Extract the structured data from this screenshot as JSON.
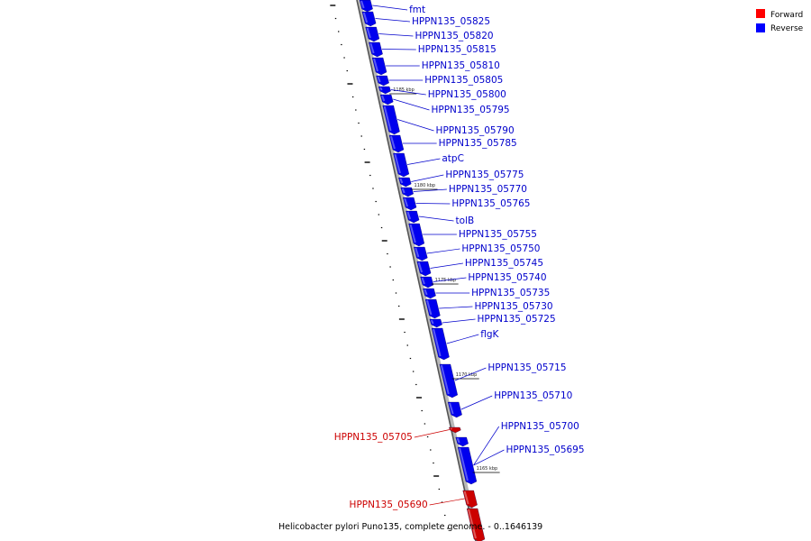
{
  "caption": "Helicobacter pylori Puno135, complete genome. - 0..1646139",
  "legend": [
    {
      "label": "Forward",
      "color": "#ff0000"
    },
    {
      "label": "Reverse",
      "color": "#0000ff"
    }
  ],
  "colors": {
    "forward": "#cc0000",
    "reverse": "#0000ee"
  },
  "ticks": [
    "1185 kbp",
    "1180 kbp",
    "1175 kbp",
    "1170 kbp",
    "1165 kbp"
  ],
  "genes": [
    {
      "name": "fmt",
      "strand": "reverse"
    },
    {
      "name": "HPPN135_05825",
      "strand": "reverse"
    },
    {
      "name": "HPPN135_05820",
      "strand": "reverse"
    },
    {
      "name": "HPPN135_05815",
      "strand": "reverse"
    },
    {
      "name": "HPPN135_05810",
      "strand": "reverse"
    },
    {
      "name": "HPPN135_05805",
      "strand": "reverse"
    },
    {
      "name": "HPPN135_05800",
      "strand": "reverse"
    },
    {
      "name": "HPPN135_05795",
      "strand": "reverse"
    },
    {
      "name": "HPPN135_05790",
      "strand": "reverse"
    },
    {
      "name": "HPPN135_05785",
      "strand": "reverse"
    },
    {
      "name": "atpC",
      "strand": "reverse"
    },
    {
      "name": "HPPN135_05775",
      "strand": "reverse"
    },
    {
      "name": "HPPN135_05770",
      "strand": "reverse"
    },
    {
      "name": "HPPN135_05765",
      "strand": "reverse"
    },
    {
      "name": "tolB",
      "strand": "reverse"
    },
    {
      "name": "HPPN135_05755",
      "strand": "reverse"
    },
    {
      "name": "HPPN135_05750",
      "strand": "reverse"
    },
    {
      "name": "HPPN135_05745",
      "strand": "reverse"
    },
    {
      "name": "HPPN135_05740",
      "strand": "reverse"
    },
    {
      "name": "HPPN135_05735",
      "strand": "reverse"
    },
    {
      "name": "HPPN135_05730",
      "strand": "reverse"
    },
    {
      "name": "HPPN135_05725",
      "strand": "reverse"
    },
    {
      "name": "flgK",
      "strand": "reverse"
    },
    {
      "name": "HPPN135_05715",
      "strand": "reverse"
    },
    {
      "name": "HPPN135_05710",
      "strand": "reverse"
    },
    {
      "name": "HPPN135_05705",
      "strand": "forward"
    },
    {
      "name": "HPPN135_05700",
      "strand": "reverse"
    },
    {
      "name": "HPPN135_05695",
      "strand": "reverse"
    },
    {
      "name": "HPPN135_05690",
      "strand": "forward"
    }
  ]
}
